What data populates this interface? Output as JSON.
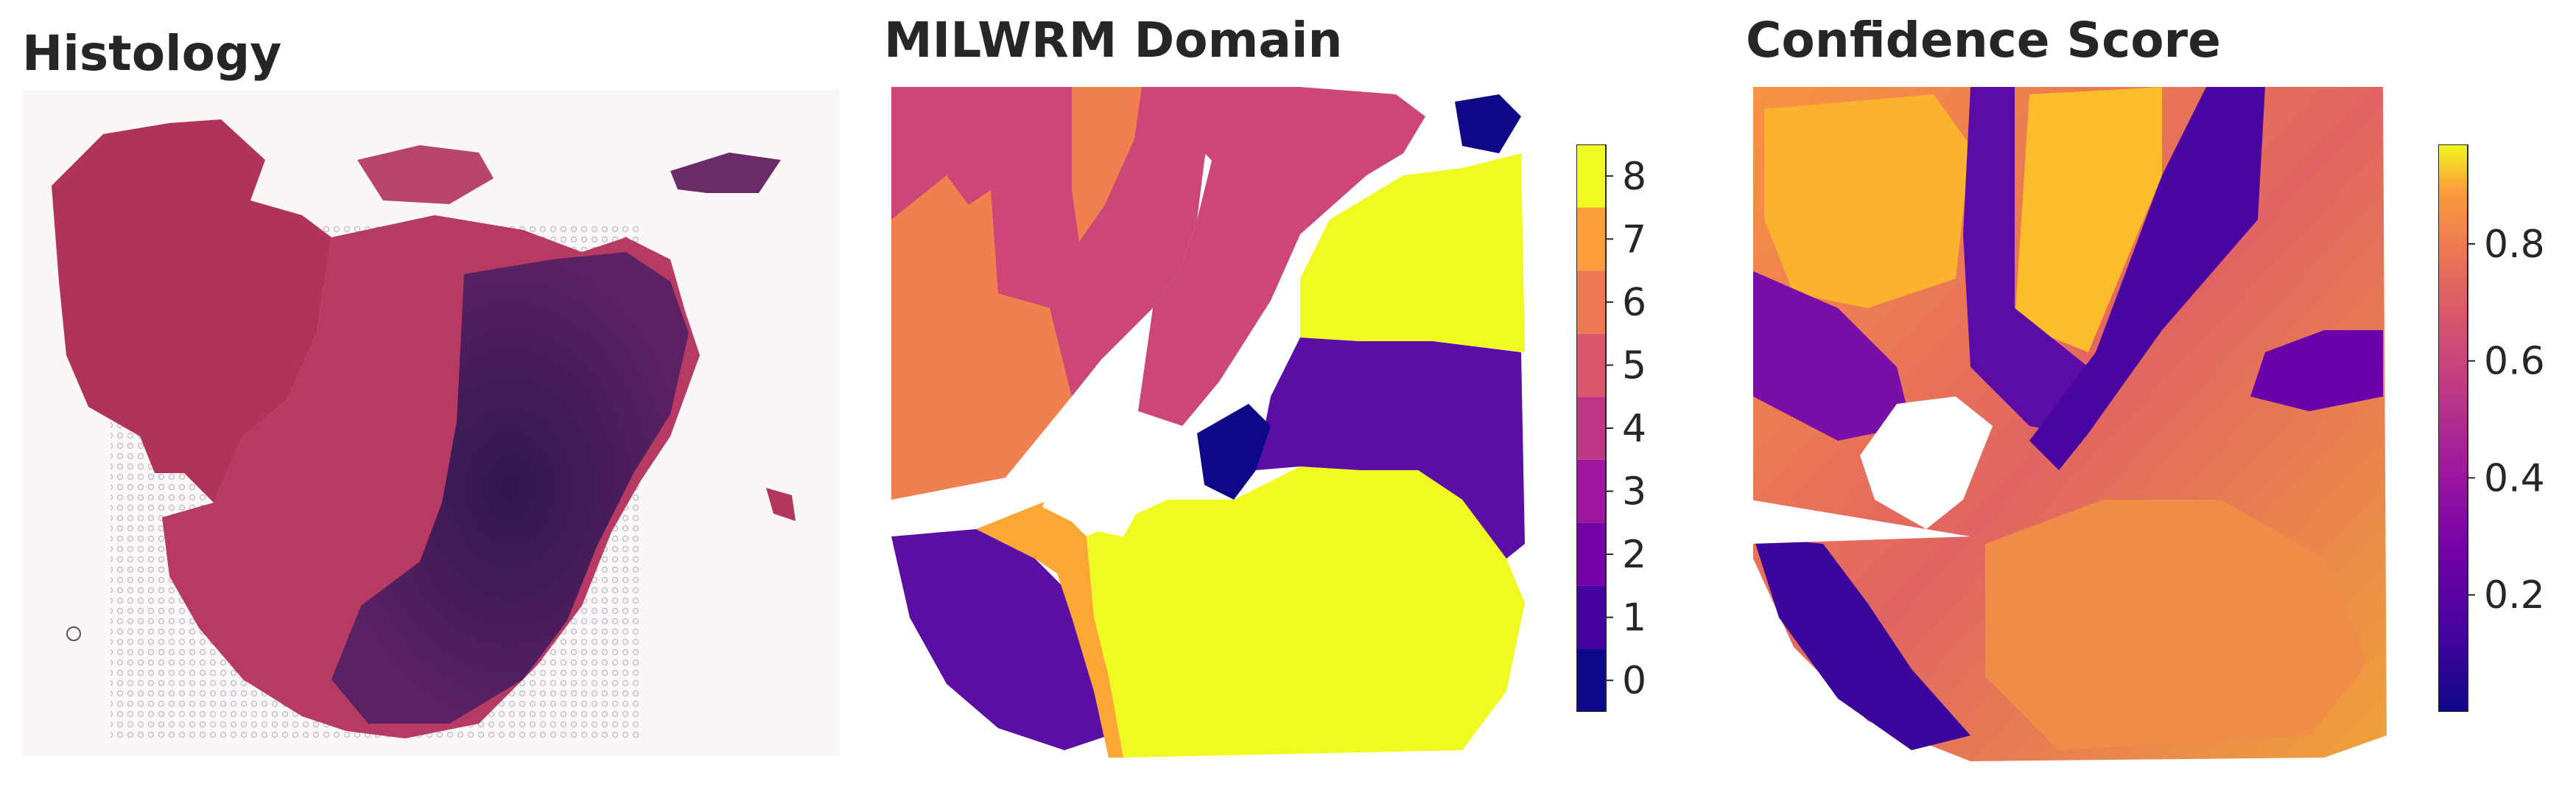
{
  "panels": {
    "histology_title": "Histology",
    "domain_title": "MILWRM Domain",
    "confidence_title": "Confidence Score"
  },
  "chart_data": [
    {
      "type": "image",
      "title": "Histology",
      "content": "H&E stained tissue section"
    },
    {
      "type": "heatmap",
      "title": "MILWRM Domain",
      "colorbar": {
        "categories": [
          0,
          1,
          2,
          3,
          4,
          5,
          6,
          7,
          8
        ],
        "tick_labels": [
          "0",
          "1",
          "2",
          "3",
          "4",
          "5",
          "6",
          "7",
          "8"
        ],
        "colormap": "plasma",
        "colors": [
          "#0d0887",
          "#46039f",
          "#7201a8",
          "#9c179e",
          "#bd3786",
          "#d8576b",
          "#ed7953",
          "#fb9f3a",
          "#f0f921"
        ]
      },
      "regions": [
        {
          "domain": 4,
          "location": "upper left"
        },
        {
          "domain": 6,
          "location": "upper left band"
        },
        {
          "domain": 8,
          "location": "right middle and lower center"
        },
        {
          "domain": 1,
          "location": "middle right band and lower left"
        },
        {
          "domain": 0,
          "location": "center and top right"
        },
        {
          "domain": 7,
          "location": "boundaries"
        }
      ]
    },
    {
      "type": "heatmap",
      "title": "Confidence Score",
      "colorbar": {
        "colormap": "plasma",
        "min": 0.0,
        "max": 0.97,
        "ticks": [
          0.2,
          0.4,
          0.6,
          0.8
        ],
        "tick_labels": [
          "0.2",
          "0.4",
          "0.6",
          "0.8"
        ]
      }
    }
  ],
  "colors": {
    "tissue_pink": "#b3365c",
    "tissue_dark": "#3f1d5c",
    "background": "#fbf7f7"
  }
}
